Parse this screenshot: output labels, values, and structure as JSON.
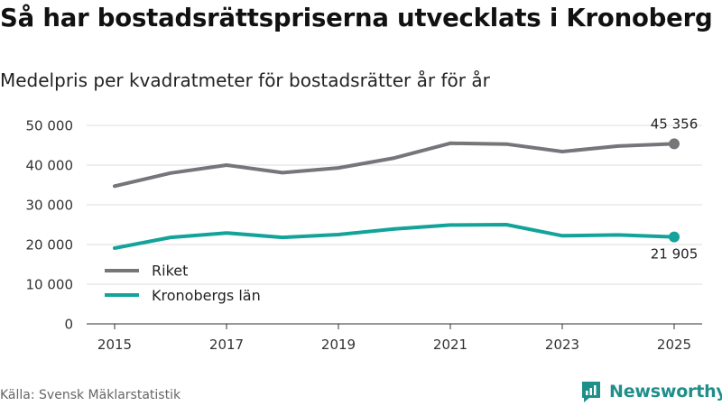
{
  "header": {
    "title": "Så har bostadsrättspriserna utvecklats i Kronoberg",
    "subtitle": "Medelpris per kvadratmeter för bostadsrätter år för år"
  },
  "footer": {
    "source": "Källa: Svensk Mäklarstatistik",
    "brand": "Newsworthy"
  },
  "colors": {
    "riket": "#76757a",
    "kronoberg": "#13a39a",
    "grid": "#dddddd",
    "brand": "#1f8f8a"
  },
  "chart_data": {
    "type": "line",
    "title": "Så har bostadsrättspriserna utvecklats i Kronoberg",
    "subtitle": "Medelpris per kvadratmeter för bostadsrätter år för år",
    "xlabel": "",
    "ylabel": "",
    "x": [
      2015,
      2016,
      2017,
      2018,
      2019,
      2020,
      2021,
      2022,
      2023,
      2024,
      2025
    ],
    "x_tick_labels": [
      "2015",
      "2017",
      "2019",
      "2021",
      "2023",
      "2025"
    ],
    "x_tick_values": [
      2015,
      2017,
      2019,
      2021,
      2023,
      2025
    ],
    "xlim": [
      2014.5,
      2025.5
    ],
    "ylim": [
      0,
      50000
    ],
    "y_tick_values": [
      0,
      10000,
      20000,
      30000,
      40000,
      50000
    ],
    "y_tick_labels": [
      "0",
      "10 000",
      "20 000",
      "30 000",
      "40 000",
      "50 000"
    ],
    "grid": true,
    "legend_position": "bottom-left",
    "series": [
      {
        "name": "Riket",
        "color": "#76757a",
        "values": [
          34700,
          38000,
          40000,
          38100,
          39300,
          41800,
          45500,
          45300,
          43400,
          44800,
          45356
        ],
        "end_label": "45 356"
      },
      {
        "name": "Kronobergs län",
        "color": "#13a39a",
        "values": [
          19100,
          21800,
          22900,
          21800,
          22500,
          23900,
          24900,
          25000,
          22200,
          22400,
          21905
        ],
        "end_label": "21 905"
      }
    ]
  }
}
